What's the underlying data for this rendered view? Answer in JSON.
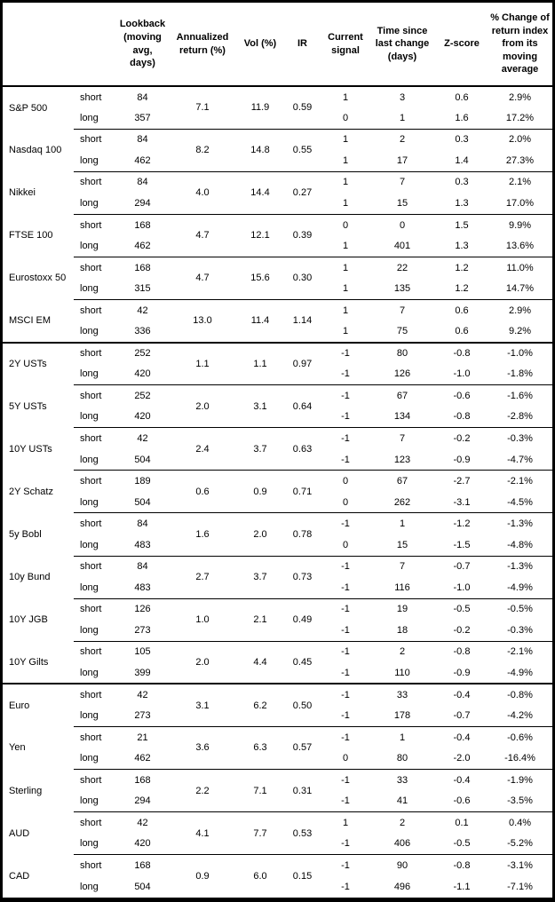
{
  "table": {
    "column_headers": [
      "",
      "",
      "Lookback (moving avg, days)",
      "Annualized return (%)",
      "Vol (%)",
      "IR",
      "Current signal",
      "Time since last change (days)",
      "Z-score",
      "% Change of return index from its moving average"
    ],
    "sections": [
      {
        "id": "equities",
        "groups": [
          {
            "asset": "S&P 500",
            "annualized_return": "7.1",
            "vol": "11.9",
            "ir": "0.59",
            "legs": [
              {
                "leg": "short",
                "lookback": "84",
                "current_signal": "1",
                "time_since_last_change": "3",
                "z_score": "0.6",
                "pct_change": "2.9%"
              },
              {
                "leg": "long",
                "lookback": "357",
                "current_signal": "0",
                "time_since_last_change": "1",
                "z_score": "1.6",
                "pct_change": "17.2%"
              }
            ]
          },
          {
            "asset": "Nasdaq 100",
            "annualized_return": "8.2",
            "vol": "14.8",
            "ir": "0.55",
            "legs": [
              {
                "leg": "short",
                "lookback": "84",
                "current_signal": "1",
                "time_since_last_change": "2",
                "z_score": "0.3",
                "pct_change": "2.0%"
              },
              {
                "leg": "long",
                "lookback": "462",
                "current_signal": "1",
                "time_since_last_change": "17",
                "z_score": "1.4",
                "pct_change": "27.3%"
              }
            ]
          },
          {
            "asset": "Nikkei",
            "annualized_return": "4.0",
            "vol": "14.4",
            "ir": "0.27",
            "legs": [
              {
                "leg": "short",
                "lookback": "84",
                "current_signal": "1",
                "time_since_last_change": "7",
                "z_score": "0.3",
                "pct_change": "2.1%"
              },
              {
                "leg": "long",
                "lookback": "294",
                "current_signal": "1",
                "time_since_last_change": "15",
                "z_score": "1.3",
                "pct_change": "17.0%"
              }
            ]
          },
          {
            "asset": "FTSE 100",
            "annualized_return": "4.7",
            "vol": "12.1",
            "ir": "0.39",
            "legs": [
              {
                "leg": "short",
                "lookback": "168",
                "current_signal": "0",
                "time_since_last_change": "0",
                "z_score": "1.5",
                "pct_change": "9.9%"
              },
              {
                "leg": "long",
                "lookback": "462",
                "current_signal": "1",
                "time_since_last_change": "401",
                "z_score": "1.3",
                "pct_change": "13.6%"
              }
            ]
          },
          {
            "asset": "Eurostoxx 50",
            "annualized_return": "4.7",
            "vol": "15.6",
            "ir": "0.30",
            "legs": [
              {
                "leg": "short",
                "lookback": "168",
                "current_signal": "1",
                "time_since_last_change": "22",
                "z_score": "1.2",
                "pct_change": "11.0%"
              },
              {
                "leg": "long",
                "lookback": "315",
                "current_signal": "1",
                "time_since_last_change": "135",
                "z_score": "1.2",
                "pct_change": "14.7%"
              }
            ]
          },
          {
            "asset": "MSCI EM",
            "annualized_return": "13.0",
            "vol": "11.4",
            "ir": "1.14",
            "legs": [
              {
                "leg": "short",
                "lookback": "42",
                "current_signal": "1",
                "time_since_last_change": "7",
                "z_score": "0.6",
                "pct_change": "2.9%"
              },
              {
                "leg": "long",
                "lookback": "336",
                "current_signal": "1",
                "time_since_last_change": "75",
                "z_score": "0.6",
                "pct_change": "9.2%"
              }
            ]
          }
        ]
      },
      {
        "id": "bonds",
        "groups": [
          {
            "asset": "2Y USTs",
            "annualized_return": "1.1",
            "vol": "1.1",
            "ir": "0.97",
            "legs": [
              {
                "leg": "short",
                "lookback": "252",
                "current_signal": "-1",
                "time_since_last_change": "80",
                "z_score": "-0.8",
                "pct_change": "-1.0%"
              },
              {
                "leg": "long",
                "lookback": "420",
                "current_signal": "-1",
                "time_since_last_change": "126",
                "z_score": "-1.0",
                "pct_change": "-1.8%"
              }
            ]
          },
          {
            "asset": "5Y USTs",
            "annualized_return": "2.0",
            "vol": "3.1",
            "ir": "0.64",
            "legs": [
              {
                "leg": "short",
                "lookback": "252",
                "current_signal": "-1",
                "time_since_last_change": "67",
                "z_score": "-0.6",
                "pct_change": "-1.6%"
              },
              {
                "leg": "long",
                "lookback": "420",
                "current_signal": "-1",
                "time_since_last_change": "134",
                "z_score": "-0.8",
                "pct_change": "-2.8%"
              }
            ]
          },
          {
            "asset": "10Y USTs",
            "annualized_return": "2.4",
            "vol": "3.7",
            "ir": "0.63",
            "legs": [
              {
                "leg": "short",
                "lookback": "42",
                "current_signal": "-1",
                "time_since_last_change": "7",
                "z_score": "-0.2",
                "pct_change": "-0.3%"
              },
              {
                "leg": "long",
                "lookback": "504",
                "current_signal": "-1",
                "time_since_last_change": "123",
                "z_score": "-0.9",
                "pct_change": "-4.7%"
              }
            ]
          },
          {
            "asset": "2Y Schatz",
            "annualized_return": "0.6",
            "vol": "0.9",
            "ir": "0.71",
            "legs": [
              {
                "leg": "short",
                "lookback": "189",
                "current_signal": "0",
                "time_since_last_change": "67",
                "z_score": "-2.7",
                "pct_change": "-2.1%"
              },
              {
                "leg": "long",
                "lookback": "504",
                "current_signal": "0",
                "time_since_last_change": "262",
                "z_score": "-3.1",
                "pct_change": "-4.5%"
              }
            ]
          },
          {
            "asset": "5y Bobl",
            "annualized_return": "1.6",
            "vol": "2.0",
            "ir": "0.78",
            "legs": [
              {
                "leg": "short",
                "lookback": "84",
                "current_signal": "-1",
                "time_since_last_change": "1",
                "z_score": "-1.2",
                "pct_change": "-1.3%"
              },
              {
                "leg": "long",
                "lookback": "483",
                "current_signal": "0",
                "time_since_last_change": "15",
                "z_score": "-1.5",
                "pct_change": "-4.8%"
              }
            ]
          },
          {
            "asset": "10y Bund",
            "annualized_return": "2.7",
            "vol": "3.7",
            "ir": "0.73",
            "legs": [
              {
                "leg": "short",
                "lookback": "84",
                "current_signal": "-1",
                "time_since_last_change": "7",
                "z_score": "-0.7",
                "pct_change": "-1.3%"
              },
              {
                "leg": "long",
                "lookback": "483",
                "current_signal": "-1",
                "time_since_last_change": "116",
                "z_score": "-1.0",
                "pct_change": "-4.9%"
              }
            ]
          },
          {
            "asset": "10Y JGB",
            "annualized_return": "1.0",
            "vol": "2.1",
            "ir": "0.49",
            "legs": [
              {
                "leg": "short",
                "lookback": "126",
                "current_signal": "-1",
                "time_since_last_change": "19",
                "z_score": "-0.5",
                "pct_change": "-0.5%"
              },
              {
                "leg": "long",
                "lookback": "273",
                "current_signal": "-1",
                "time_since_last_change": "18",
                "z_score": "-0.2",
                "pct_change": "-0.3%"
              }
            ]
          },
          {
            "asset": "10Y Gilts",
            "annualized_return": "2.0",
            "vol": "4.4",
            "ir": "0.45",
            "legs": [
              {
                "leg": "short",
                "lookback": "105",
                "current_signal": "-1",
                "time_since_last_change": "2",
                "z_score": "-0.8",
                "pct_change": "-2.1%"
              },
              {
                "leg": "long",
                "lookback": "399",
                "current_signal": "-1",
                "time_since_last_change": "110",
                "z_score": "-0.9",
                "pct_change": "-4.9%"
              }
            ]
          }
        ]
      },
      {
        "id": "fx",
        "groups": [
          {
            "asset": "Euro",
            "annualized_return": "3.1",
            "vol": "6.2",
            "ir": "0.50",
            "legs": [
              {
                "leg": "short",
                "lookback": "42",
                "current_signal": "-1",
                "time_since_last_change": "33",
                "z_score": "-0.4",
                "pct_change": "-0.8%"
              },
              {
                "leg": "long",
                "lookback": "273",
                "current_signal": "-1",
                "time_since_last_change": "178",
                "z_score": "-0.7",
                "pct_change": "-4.2%"
              }
            ]
          },
          {
            "asset": "Yen",
            "annualized_return": "3.6",
            "vol": "6.3",
            "ir": "0.57",
            "legs": [
              {
                "leg": "short",
                "lookback": "21",
                "current_signal": "-1",
                "time_since_last_change": "1",
                "z_score": "-0.4",
                "pct_change": "-0.6%"
              },
              {
                "leg": "long",
                "lookback": "462",
                "current_signal": "0",
                "time_since_last_change": "80",
                "z_score": "-2.0",
                "pct_change": "-16.4%"
              }
            ]
          },
          {
            "asset": "Sterling",
            "annualized_return": "2.2",
            "vol": "7.1",
            "ir": "0.31",
            "legs": [
              {
                "leg": "short",
                "lookback": "168",
                "current_signal": "-1",
                "time_since_last_change": "33",
                "z_score": "-0.4",
                "pct_change": "-1.9%"
              },
              {
                "leg": "long",
                "lookback": "294",
                "current_signal": "-1",
                "time_since_last_change": "41",
                "z_score": "-0.6",
                "pct_change": "-3.5%"
              }
            ]
          },
          {
            "asset": "AUD",
            "annualized_return": "4.1",
            "vol": "7.7",
            "ir": "0.53",
            "legs": [
              {
                "leg": "short",
                "lookback": "42",
                "current_signal": "1",
                "time_since_last_change": "2",
                "z_score": "0.1",
                "pct_change": "0.4%"
              },
              {
                "leg": "long",
                "lookback": "420",
                "current_signal": "-1",
                "time_since_last_change": "406",
                "z_score": "-0.5",
                "pct_change": "-5.2%"
              }
            ]
          },
          {
            "asset": "CAD",
            "annualized_return": "0.9",
            "vol": "6.0",
            "ir": "0.15",
            "legs": [
              {
                "leg": "short",
                "lookback": "168",
                "current_signal": "-1",
                "time_since_last_change": "90",
                "z_score": "-0.8",
                "pct_change": "-3.1%"
              },
              {
                "leg": "long",
                "lookback": "504",
                "current_signal": "-1",
                "time_since_last_change": "496",
                "z_score": "-1.1",
                "pct_change": "-7.1%"
              }
            ]
          }
        ]
      }
    ]
  }
}
